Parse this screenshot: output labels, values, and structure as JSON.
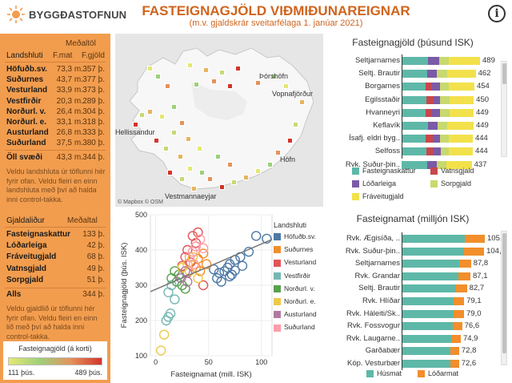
{
  "header": {
    "logo": "BYGGÐASTOFNUN",
    "title": "FASTEIGNAGJÖLD VIÐMIÐUNAREIGNAR",
    "subtitle": "(m.v. gjaldskrár sveitarfélaga 1. janúar 2021)",
    "info": "i"
  },
  "regions_table": {
    "meta_header": "Meðaltöl",
    "col_region": "Landshluti",
    "col_fmat": "F.mat",
    "col_fgjald": "F.gjöld",
    "rows": [
      {
        "name": "Höfuðb.sv.",
        "fmat": "73,3 m.",
        "fgjald": "357 þ."
      },
      {
        "name": "Suðurnes",
        "fmat": "43,7 m.",
        "fgjald": "377 þ."
      },
      {
        "name": "Vesturland",
        "fmat": "33,9 m.",
        "fgjald": "373 þ."
      },
      {
        "name": "Vestfirðir",
        "fmat": "20,3 m.",
        "fgjald": "289 þ."
      },
      {
        "name": "Norðurl. v.",
        "fmat": "26,4 m.",
        "fgjald": "304 þ."
      },
      {
        "name": "Norðurl. e.",
        "fmat": "33,1 m.",
        "fgjald": "318 þ."
      },
      {
        "name": "Austurland",
        "fmat": "26,8 m.",
        "fgjald": "333 þ."
      },
      {
        "name": "Suðurland",
        "fmat": "37,5 m.",
        "fgjald": "380 þ."
      }
    ],
    "total": {
      "name": "Öll svæði",
      "fmat": "43,3 m.",
      "fgjald": "344 þ."
    },
    "note": "Veldu landshluta úr töflunni hér fyrir ofan. Veldu fleiri en einn landshluta með því að halda inni control-takka."
  },
  "fees_table": {
    "col_name": "Gjaldaliður",
    "col_avg": "Meðaltal",
    "rows": [
      {
        "name": "Fasteignaskattur",
        "value": "133 þ."
      },
      {
        "name": "Lóðarleiga",
        "value": "42 þ."
      },
      {
        "name": "Fráveitugjald",
        "value": "68 þ."
      },
      {
        "name": "Vatnsgjald",
        "value": "49 þ."
      },
      {
        "name": "Sorpgjald",
        "value": "51 þ."
      }
    ],
    "total": {
      "name": "Alls",
      "value": "344 þ."
    },
    "note": "Veldu gjaldlið úr töflunni hér fyrir ofan. Veldu fleiri en einn lið með því að halda inni control-takka."
  },
  "color_legend": {
    "title": "Fasteignagjöld (á korti)",
    "min": "111 þús.",
    "max": "489 þús."
  },
  "map": {
    "labels": [
      "Þórshöfn",
      "Vopnafjörður",
      "Hellissandur",
      "Höfn",
      "Vestmannaeyjar"
    ],
    "credit": "© Mapbox © OSM"
  },
  "scatter": {
    "xlabel": "Fasteignamat (mill. ISK)",
    "ylabel": "Fasteignagjöld (þús. ISK)",
    "legend_title": "Landshluti",
    "legend": [
      {
        "name": "Höfuðb.sv.",
        "color": "#4e79a7"
      },
      {
        "name": "Suðurnes",
        "color": "#f28e2b"
      },
      {
        "name": "Vesturland",
        "color": "#e15759"
      },
      {
        "name": "Vestfirðir",
        "color": "#76b7b2"
      },
      {
        "name": "Norðurl. v.",
        "color": "#59a14f"
      },
      {
        "name": "Norðurl. e.",
        "color": "#edc948"
      },
      {
        "name": "Austurland",
        "color": "#b07aa1"
      },
      {
        "name": "Suðurland",
        "color": "#ff9da7"
      }
    ],
    "x_ticks": [
      "0",
      "50",
      "100"
    ],
    "y_ticks": [
      "100",
      "200",
      "300",
      "400",
      "500"
    ]
  },
  "chart_data": [
    {
      "type": "bar",
      "title": "Fasteignagjöld (þúsund ISK)",
      "categories": [
        "Seltjarnarnes",
        "Seltj. Brautir",
        "Borgarnes",
        "Egilsstaðir",
        "Hvanneyri",
        "Keflavík",
        "Ísafj. eldri byg..",
        "Selfoss",
        "Rvk. Suður-þin.."
      ],
      "totals": [
        489,
        462,
        454,
        450,
        449,
        449,
        444,
        444,
        437
      ],
      "series": [
        {
          "name": "Fasteignaskattur",
          "color": "#5eb8a8",
          "values": [
            165,
            160,
            150,
            155,
            150,
            165,
            150,
            155,
            160
          ]
        },
        {
          "name": "Vatnsgjald",
          "color": "#c9474b",
          "values": [
            0,
            0,
            40,
            45,
            40,
            0,
            45,
            40,
            0
          ]
        },
        {
          "name": "Lóðarleiga",
          "color": "#7b5aa6",
          "values": [
            70,
            60,
            50,
            40,
            50,
            60,
            45,
            50,
            60
          ]
        },
        {
          "name": "Sorpgjald",
          "color": "#c8d96f",
          "values": [
            60,
            65,
            55,
            60,
            60,
            60,
            55,
            50,
            60
          ]
        },
        {
          "name": "Fráveitugjald",
          "color": "#f2e14b",
          "values": [
            194,
            177,
            159,
            150,
            149,
            164,
            149,
            149,
            157
          ]
        }
      ],
      "legend": [
        "Fasteignaskattur",
        "Vatnsgjald",
        "Lóðarleiga",
        "Sorpgjald",
        "Fráveitugjald"
      ]
    },
    {
      "type": "bar",
      "title": "Fasteignamat (milljón ISK)",
      "categories": [
        "Rvk. Ægisíða, ..",
        "Rvk. Suður-þin..",
        "Seltjarnarnes",
        "Rvk. Grandar",
        "Seltj. Brautir",
        "Rvk. Hlíðar",
        "Rvk. Háleiti/Sk..",
        "Rvk. Fossvogur",
        "Rvk. Laugarne..",
        "Garðabær",
        "Kóp. Vesturbær"
      ],
      "totals": [
        105.3,
        104.4,
        87.8,
        87.1,
        82.7,
        79.1,
        79.0,
        76.6,
        74.9,
        72.8,
        72.6
      ],
      "total_labels": [
        "105,3",
        "104,4",
        "87,8",
        "87,1",
        "82,7",
        "79,1",
        "79,0",
        "76,6",
        "74,9",
        "72,8",
        "72,6"
      ],
      "series": [
        {
          "name": "Húsmat",
          "color": "#5eb8a8",
          "values": [
            80.3,
            79.4,
            72.8,
            72.1,
            68.7,
            66.1,
            66.0,
            64.6,
            62.9,
            61.8,
            61.6
          ]
        },
        {
          "name": "Lóðarmat",
          "color": "#f28e2b",
          "values": [
            25.0,
            25.0,
            15.0,
            15.0,
            14.0,
            13.0,
            13.0,
            12.0,
            12.0,
            11.0,
            11.0
          ]
        }
      ],
      "legend": [
        "Húsmat",
        "Lóðarmat"
      ]
    },
    {
      "type": "scatter",
      "xlabel": "Fasteignamat (mill. ISK)",
      "ylabel": "Fasteignagjöld (þús. ISK)",
      "xlim": [
        -5,
        110
      ],
      "ylim": [
        100,
        500
      ],
      "points": [
        {
          "x": 95,
          "y": 440,
          "c": 0
        },
        {
          "x": 105,
          "y": 432,
          "c": 0
        },
        {
          "x": 88,
          "y": 395,
          "c": 0
        },
        {
          "x": 80,
          "y": 380,
          "c": 0
        },
        {
          "x": 75,
          "y": 372,
          "c": 0
        },
        {
          "x": 70,
          "y": 360,
          "c": 0
        },
        {
          "x": 68,
          "y": 350,
          "c": 0
        },
        {
          "x": 65,
          "y": 340,
          "c": 0
        },
        {
          "x": 72,
          "y": 330,
          "c": 0
        },
        {
          "x": 60,
          "y": 335,
          "c": 0
        },
        {
          "x": 58,
          "y": 320,
          "c": 0
        },
        {
          "x": 62,
          "y": 310,
          "c": 0
        },
        {
          "x": 55,
          "y": 345,
          "c": 0
        },
        {
          "x": 75,
          "y": 342,
          "c": 0
        },
        {
          "x": 82,
          "y": 355,
          "c": 0
        },
        {
          "x": 70,
          "y": 325,
          "c": 0
        },
        {
          "x": 45,
          "y": 390,
          "c": 1
        },
        {
          "x": 40,
          "y": 375,
          "c": 1
        },
        {
          "x": 48,
          "y": 360,
          "c": 1
        },
        {
          "x": 38,
          "y": 350,
          "c": 1
        },
        {
          "x": 42,
          "y": 340,
          "c": 1
        },
        {
          "x": 35,
          "y": 440,
          "c": 2
        },
        {
          "x": 38,
          "y": 420,
          "c": 2
        },
        {
          "x": 30,
          "y": 400,
          "c": 2
        },
        {
          "x": 28,
          "y": 380,
          "c": 2
        },
        {
          "x": 33,
          "y": 365,
          "c": 2
        },
        {
          "x": 40,
          "y": 450,
          "c": 2
        },
        {
          "x": 25,
          "y": 355,
          "c": 2
        },
        {
          "x": 30,
          "y": 335,
          "c": 2
        },
        {
          "x": 45,
          "y": 300,
          "c": 2
        },
        {
          "x": 15,
          "y": 300,
          "c": 3
        },
        {
          "x": 12,
          "y": 280,
          "c": 3
        },
        {
          "x": 18,
          "y": 260,
          "c": 3
        },
        {
          "x": 14,
          "y": 220,
          "c": 3
        },
        {
          "x": 12,
          "y": 210,
          "c": 3
        },
        {
          "x": 10,
          "y": 200,
          "c": 3
        },
        {
          "x": 20,
          "y": 310,
          "c": 4
        },
        {
          "x": 22,
          "y": 330,
          "c": 4
        },
        {
          "x": 25,
          "y": 300,
          "c": 4
        },
        {
          "x": 18,
          "y": 340,
          "c": 4
        },
        {
          "x": 28,
          "y": 290,
          "c": 4
        },
        {
          "x": 15,
          "y": 320,
          "c": 4
        },
        {
          "x": 30,
          "y": 360,
          "c": 5
        },
        {
          "x": 35,
          "y": 380,
          "c": 5
        },
        {
          "x": 32,
          "y": 340,
          "c": 5
        },
        {
          "x": 25,
          "y": 350,
          "c": 5
        },
        {
          "x": 8,
          "y": 160,
          "c": 5
        },
        {
          "x": 5,
          "y": 115,
          "c": 5
        },
        {
          "x": 40,
          "y": 320,
          "c": 5
        },
        {
          "x": 28,
          "y": 340,
          "c": 6
        },
        {
          "x": 24,
          "y": 320,
          "c": 6
        },
        {
          "x": 30,
          "y": 310,
          "c": 6
        },
        {
          "x": 38,
          "y": 410,
          "c": 7
        },
        {
          "x": 42,
          "y": 430,
          "c": 7
        },
        {
          "x": 35,
          "y": 395,
          "c": 7
        },
        {
          "x": 32,
          "y": 380,
          "c": 7
        },
        {
          "x": 45,
          "y": 405,
          "c": 7
        },
        {
          "x": 36,
          "y": 360,
          "c": 7
        }
      ],
      "trend": [
        {
          "x": -5,
          "y": 282
        },
        {
          "x": 110,
          "y": 430
        }
      ]
    }
  ]
}
